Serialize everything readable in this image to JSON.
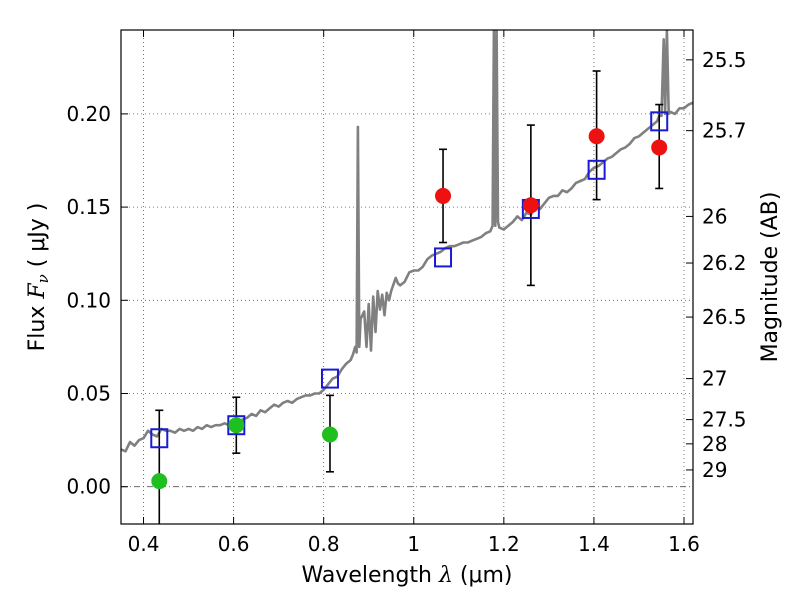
{
  "chart_data": {
    "type": "scatter",
    "title": "",
    "xlabel": {
      "prefix": "Wavelength  ",
      "symbol": "λ",
      "unit": " (μm)"
    },
    "ylabel": {
      "prefix": "Flux  ",
      "symbol": "F",
      "subscript": "ν",
      "unit": "  ( μJy )"
    },
    "ylabel_right": "Magnitude (AB)",
    "xlim": [
      0.35,
      1.62
    ],
    "ylim": [
      -0.02,
      0.245
    ],
    "grid": true,
    "x_ticks": [
      0.4,
      0.6,
      0.8,
      1.0,
      1.2,
      1.4,
      1.6
    ],
    "x_tick_labels": [
      "0.4",
      "0.6",
      "0.8",
      "1",
      "1.2",
      "1.4",
      "1.6"
    ],
    "y_ticks": [
      0.0,
      0.05,
      0.1,
      0.15,
      0.2
    ],
    "y_tick_labels": [
      "0.00",
      "0.05",
      "0.10",
      "0.15",
      "0.20"
    ],
    "magnitude_ticks": [
      {
        "label": "25.5",
        "flux": 0.229
      },
      {
        "label": "25.7",
        "flux": 0.191
      },
      {
        "label": "26",
        "flux": 0.145
      },
      {
        "label": "26.2",
        "flux": 0.12
      },
      {
        "label": "26.5",
        "flux": 0.091
      },
      {
        "label": "27",
        "flux": 0.058
      },
      {
        "label": "27.5",
        "flux": 0.036
      },
      {
        "label": "28",
        "flux": 0.023
      },
      {
        "label": "29",
        "flux": 0.009
      }
    ],
    "detections_green": [
      {
        "x": 0.435,
        "y": 0.003,
        "err_lo": 0.038,
        "err_hi": 0.038
      },
      {
        "x": 0.606,
        "y": 0.033,
        "err_lo": 0.015,
        "err_hi": 0.015
      },
      {
        "x": 0.814,
        "y": 0.028,
        "err_lo": 0.02,
        "err_hi": 0.021
      }
    ],
    "detections_red": [
      {
        "x": 1.065,
        "y": 0.156,
        "err_lo": 0.025,
        "err_hi": 0.025
      },
      {
        "x": 1.26,
        "y": 0.151,
        "err_lo": 0.043,
        "err_hi": 0.043
      },
      {
        "x": 1.406,
        "y": 0.188,
        "err_lo": 0.034,
        "err_hi": 0.035
      },
      {
        "x": 1.545,
        "y": 0.182,
        "err_lo": 0.022,
        "err_hi": 0.023
      }
    ],
    "model_photometry": [
      {
        "x": 0.435,
        "y": 0.026
      },
      {
        "x": 0.606,
        "y": 0.033
      },
      {
        "x": 0.814,
        "y": 0.058
      },
      {
        "x": 1.065,
        "y": 0.123
      },
      {
        "x": 1.26,
        "y": 0.149
      },
      {
        "x": 1.406,
        "y": 0.17
      },
      {
        "x": 1.545,
        "y": 0.196
      }
    ],
    "model_spectrum": [
      [
        0.35,
        0.02
      ],
      [
        0.36,
        0.019
      ],
      [
        0.37,
        0.024
      ],
      [
        0.38,
        0.022
      ],
      [
        0.39,
        0.025
      ],
      [
        0.4,
        0.026
      ],
      [
        0.41,
        0.03
      ],
      [
        0.42,
        0.028
      ],
      [
        0.43,
        0.027
      ],
      [
        0.44,
        0.031
      ],
      [
        0.45,
        0.03
      ],
      [
        0.46,
        0.03
      ],
      [
        0.47,
        0.029
      ],
      [
        0.48,
        0.031
      ],
      [
        0.49,
        0.03
      ],
      [
        0.5,
        0.031
      ],
      [
        0.51,
        0.03
      ],
      [
        0.52,
        0.032
      ],
      [
        0.53,
        0.031
      ],
      [
        0.54,
        0.033
      ],
      [
        0.55,
        0.032
      ],
      [
        0.56,
        0.033
      ],
      [
        0.57,
        0.033
      ],
      [
        0.58,
        0.034
      ],
      [
        0.59,
        0.033
      ],
      [
        0.6,
        0.034
      ],
      [
        0.61,
        0.035
      ],
      [
        0.62,
        0.036
      ],
      [
        0.63,
        0.037
      ],
      [
        0.64,
        0.039
      ],
      [
        0.65,
        0.038
      ],
      [
        0.66,
        0.041
      ],
      [
        0.67,
        0.04
      ],
      [
        0.68,
        0.042
      ],
      [
        0.69,
        0.044
      ],
      [
        0.7,
        0.043
      ],
      [
        0.71,
        0.045
      ],
      [
        0.72,
        0.046
      ],
      [
        0.73,
        0.045
      ],
      [
        0.74,
        0.047
      ],
      [
        0.75,
        0.048
      ],
      [
        0.76,
        0.049
      ],
      [
        0.77,
        0.049
      ],
      [
        0.78,
        0.05
      ],
      [
        0.79,
        0.05
      ],
      [
        0.8,
        0.052
      ],
      [
        0.81,
        0.055
      ],
      [
        0.82,
        0.058
      ],
      [
        0.83,
        0.059
      ],
      [
        0.84,
        0.063
      ],
      [
        0.85,
        0.066
      ],
      [
        0.86,
        0.068
      ],
      [
        0.865,
        0.071
      ],
      [
        0.87,
        0.075
      ],
      [
        0.873,
        0.072
      ],
      [
        0.876,
        0.193
      ],
      [
        0.879,
        0.075
      ],
      [
        0.882,
        0.09
      ],
      [
        0.89,
        0.094
      ],
      [
        0.895,
        0.075
      ],
      [
        0.9,
        0.098
      ],
      [
        0.905,
        0.073
      ],
      [
        0.91,
        0.102
      ],
      [
        0.915,
        0.083
      ],
      [
        0.92,
        0.105
      ],
      [
        0.925,
        0.095
      ],
      [
        0.93,
        0.103
      ],
      [
        0.935,
        0.092
      ],
      [
        0.94,
        0.104
      ],
      [
        0.945,
        0.1
      ],
      [
        0.95,
        0.105
      ],
      [
        0.96,
        0.112
      ],
      [
        0.965,
        0.109
      ],
      [
        0.97,
        0.108
      ],
      [
        0.98,
        0.11
      ],
      [
        0.99,
        0.115
      ],
      [
        1.0,
        0.116
      ],
      [
        1.01,
        0.116
      ],
      [
        1.02,
        0.118
      ],
      [
        1.03,
        0.122
      ],
      [
        1.04,
        0.124
      ],
      [
        1.05,
        0.125
      ],
      [
        1.06,
        0.126
      ],
      [
        1.07,
        0.128
      ],
      [
        1.08,
        0.129
      ],
      [
        1.09,
        0.129
      ],
      [
        1.1,
        0.13
      ],
      [
        1.11,
        0.131
      ],
      [
        1.12,
        0.131
      ],
      [
        1.13,
        0.132
      ],
      [
        1.14,
        0.133
      ],
      [
        1.15,
        0.134
      ],
      [
        1.16,
        0.136
      ],
      [
        1.17,
        0.137
      ],
      [
        1.175,
        0.14
      ],
      [
        1.178,
        0.245
      ],
      [
        1.181,
        0.14
      ],
      [
        1.184,
        0.245
      ],
      [
        1.187,
        0.142
      ],
      [
        1.19,
        0.139
      ],
      [
        1.2,
        0.138
      ],
      [
        1.21,
        0.14
      ],
      [
        1.22,
        0.142
      ],
      [
        1.23,
        0.145
      ],
      [
        1.24,
        0.143
      ],
      [
        1.25,
        0.147
      ],
      [
        1.26,
        0.146
      ],
      [
        1.27,
        0.15
      ],
      [
        1.28,
        0.149
      ],
      [
        1.29,
        0.152
      ],
      [
        1.3,
        0.155
      ],
      [
        1.31,
        0.156
      ],
      [
        1.32,
        0.156
      ],
      [
        1.33,
        0.159
      ],
      [
        1.34,
        0.158
      ],
      [
        1.35,
        0.16
      ],
      [
        1.36,
        0.163
      ],
      [
        1.37,
        0.164
      ],
      [
        1.38,
        0.165
      ],
      [
        1.39,
        0.169
      ],
      [
        1.4,
        0.171
      ],
      [
        1.41,
        0.172
      ],
      [
        1.42,
        0.174
      ],
      [
        1.43,
        0.176
      ],
      [
        1.44,
        0.177
      ],
      [
        1.45,
        0.179
      ],
      [
        1.46,
        0.181
      ],
      [
        1.47,
        0.182
      ],
      [
        1.48,
        0.184
      ],
      [
        1.49,
        0.187
      ],
      [
        1.5,
        0.188
      ],
      [
        1.51,
        0.19
      ],
      [
        1.52,
        0.192
      ],
      [
        1.53,
        0.194
      ],
      [
        1.54,
        0.196
      ],
      [
        1.545,
        0.199
      ],
      [
        1.55,
        0.199
      ],
      [
        1.555,
        0.24
      ],
      [
        1.558,
        0.2
      ],
      [
        1.562,
        0.245
      ],
      [
        1.566,
        0.2
      ],
      [
        1.57,
        0.201
      ],
      [
        1.58,
        0.2
      ],
      [
        1.59,
        0.203
      ],
      [
        1.6,
        0.203
      ],
      [
        1.61,
        0.205
      ],
      [
        1.62,
        0.206
      ]
    ],
    "colors": {
      "spectrum": "#808080",
      "green": "#1fbf1f",
      "red": "#ee1111",
      "model_box": "#1a1ad6",
      "errorbar": "#000000",
      "grid": "#555555",
      "zero_line": "#555555"
    }
  }
}
